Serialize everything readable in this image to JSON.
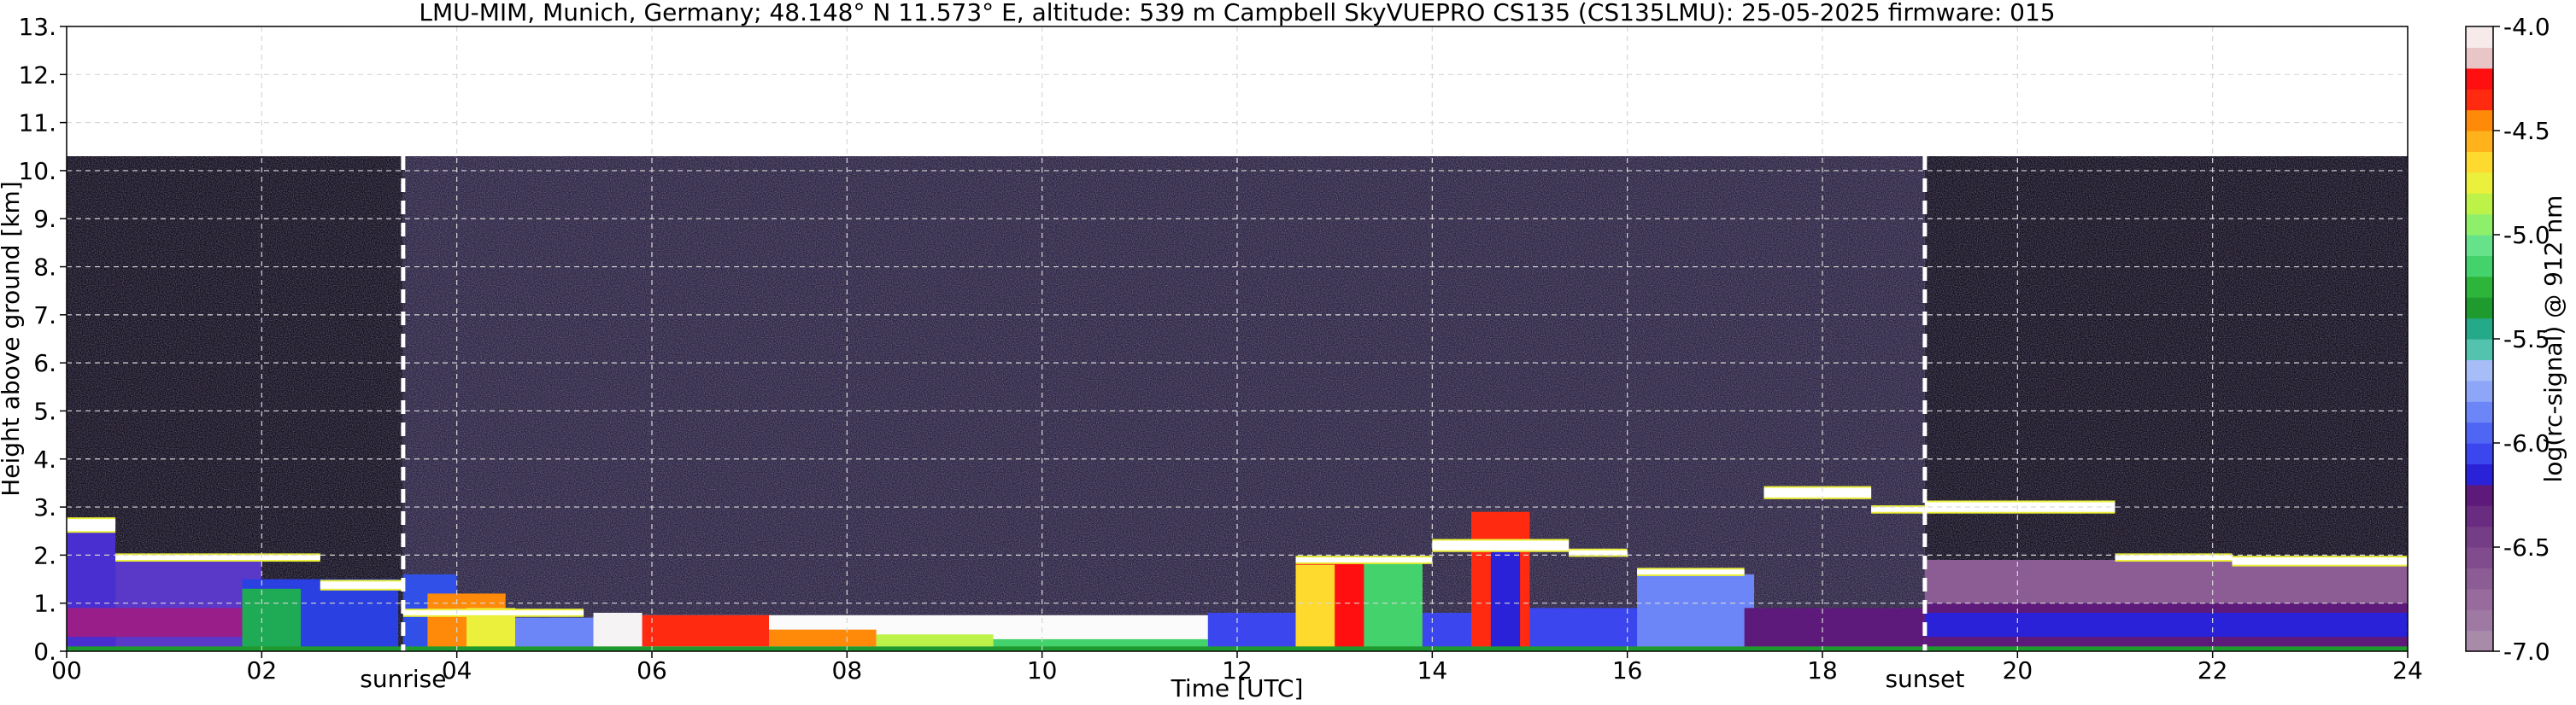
{
  "chart_data": {
    "type": "heatmap",
    "title": "LMU-MIM, Munich, Germany; 48.148° N 11.573° E, altitude: 539 m    Campbell SkyVUEPRO CS135 (CS135LMU): 25-05-2025    firmware: 015",
    "xlabel": "Time [UTC]",
    "ylabel": "Height above ground [km]",
    "xlim": [
      0,
      24
    ],
    "ylim": [
      0,
      13
    ],
    "x_ticks": [
      0,
      2,
      4,
      6,
      8,
      10,
      12,
      14,
      16,
      18,
      20,
      22,
      24
    ],
    "x_tick_labels": [
      "00",
      "02",
      "04",
      "06",
      "08",
      "10",
      "12",
      "14",
      "16",
      "18",
      "20",
      "22",
      "24"
    ],
    "y_ticks": [
      0,
      1,
      2,
      3,
      4,
      5,
      6,
      7,
      8,
      9,
      10,
      11,
      12,
      13
    ],
    "y_tick_labels": [
      "0.",
      "1.",
      "2.",
      "3.",
      "4.",
      "5.",
      "6.",
      "7.",
      "8.",
      "9.",
      "10.",
      "11.",
      "12.",
      "13."
    ],
    "grid": true,
    "data_top_km": 10.3,
    "annotations": [
      {
        "label": "sunrise",
        "x": 3.45
      },
      {
        "label": "sunset",
        "x": 19.05
      }
    ],
    "colorbar": {
      "label": "log(rc-signal) @ 912 nm",
      "range": [
        -7.0,
        -4.0
      ],
      "tick_values": [
        -4.0,
        -4.5,
        -5.0,
        -5.5,
        -6.0,
        -6.5,
        -7.0
      ],
      "tick_labels": [
        "-4.0",
        "-4.5",
        "-5.0",
        "-5.5",
        "-6.0",
        "-6.5",
        "-7.0"
      ],
      "colors_bottom_to_top": [
        "#a78ba9",
        "#9e7aa3",
        "#976b9c",
        "#8c5d95",
        "#804c8e",
        "#753d86",
        "#6a2c80",
        "#5e1a7b",
        "#2a22d8",
        "#3b46ee",
        "#4f66f4",
        "#6c86f7",
        "#8ea6f8",
        "#a6bdf7",
        "#53c3b0",
        "#24aa88",
        "#1f9a2e",
        "#2db43a",
        "#44d26c",
        "#66e38a",
        "#8ef06a",
        "#bdf249",
        "#ebf03d",
        "#ffda2e",
        "#ffb21b",
        "#ff8a0a",
        "#ff2a10",
        "#ff0f0f",
        "#e8c6c8",
        "#f6eaeb"
      ]
    },
    "background_regions": [
      {
        "name": "dark night noise",
        "x": [
          0,
          3.45
        ],
        "y": [
          0,
          10.3
        ],
        "color": "#14101c"
      },
      {
        "name": "day noise",
        "x": [
          3.45,
          19.05
        ],
        "y": [
          0,
          10.3
        ],
        "color": "#2c2540"
      },
      {
        "name": "dark night noise",
        "x": [
          19.05,
          24
        ],
        "y": [
          0,
          10.3
        ],
        "color": "#14101c"
      }
    ],
    "boundary_layer": [
      {
        "x": [
          0,
          0.5
        ],
        "y": [
          0,
          2.6
        ],
        "color": "#4a2fd0"
      },
      {
        "x": [
          0.5,
          2.0
        ],
        "y": [
          0,
          1.9
        ],
        "color": "#5a38c8"
      },
      {
        "x": [
          0,
          2.2
        ],
        "y": [
          0.3,
          0.9
        ],
        "color": "#9a1e8a"
      },
      {
        "x": [
          1.8,
          3.4
        ],
        "y": [
          0,
          1.5
        ],
        "color": "#2a40e0"
      },
      {
        "x": [
          1.8,
          2.4
        ],
        "y": [
          0,
          1.3
        ],
        "color": "#1faa55"
      },
      {
        "x": [
          3.45,
          4.0
        ],
        "y": [
          0,
          1.6
        ],
        "color": "#3050e8"
      },
      {
        "x": [
          3.7,
          4.5
        ],
        "y": [
          0,
          1.2
        ],
        "color": "#ff8a0a"
      },
      {
        "x": [
          4.1,
          4.6
        ],
        "y": [
          0,
          0.9
        ],
        "color": "#ebf03d"
      },
      {
        "x": [
          4.6,
          5.4
        ],
        "y": [
          0,
          0.7
        ],
        "color": "#6c86f7"
      },
      {
        "x": [
          5.4,
          5.9
        ],
        "y": [
          0,
          0.8
        ],
        "color": "#f6f3f5"
      },
      {
        "x": [
          5.9,
          12.6
        ],
        "y": [
          0,
          0.75
        ],
        "color": "#fbfbfb"
      },
      {
        "x": [
          5.9,
          7.2
        ],
        "y": [
          0.1,
          0.75
        ],
        "color": "#ff2a10"
      },
      {
        "x": [
          7.2,
          8.3
        ],
        "y": [
          0.1,
          0.45
        ],
        "color": "#ff8a0a"
      },
      {
        "x": [
          8.3,
          9.5
        ],
        "y": [
          0.1,
          0.35
        ],
        "color": "#bdf249"
      },
      {
        "x": [
          9.5,
          11.7
        ],
        "y": [
          0.05,
          0.25
        ],
        "color": "#44d26c"
      },
      {
        "x": [
          11.7,
          12.6
        ],
        "y": [
          0,
          0.8
        ],
        "color": "#3b46ee"
      },
      {
        "x": [
          12.6,
          13.9
        ],
        "y": [
          0,
          1.9
        ],
        "color": "#ff0f0f"
      },
      {
        "x": [
          12.6,
          13.0
        ],
        "y": [
          0,
          1.8
        ],
        "color": "#ffda2e"
      },
      {
        "x": [
          13.3,
          13.9
        ],
        "y": [
          0,
          1.9
        ],
        "color": "#44d26c"
      },
      {
        "x": [
          13.9,
          14.4
        ],
        "y": [
          0,
          0.8
        ],
        "color": "#3b46ee"
      },
      {
        "x": [
          14.4,
          15.0
        ],
        "y": [
          0,
          2.9
        ],
        "color": "#ff2a10"
      },
      {
        "x": [
          14.6,
          14.9
        ],
        "y": [
          0,
          2.2
        ],
        "color": "#2a22d8"
      },
      {
        "x": [
          15.0,
          17.2
        ],
        "y": [
          0,
          0.9
        ],
        "color": "#3b46ee"
      },
      {
        "x": [
          16.1,
          17.3
        ],
        "y": [
          0,
          1.6
        ],
        "color": "#6c86f7"
      },
      {
        "x": [
          17.2,
          19.05
        ],
        "y": [
          0,
          0.9
        ],
        "color": "#5e1a7b"
      },
      {
        "x": [
          19.05,
          24
        ],
        "y": [
          0,
          1.9
        ],
        "color": "#8c5d95"
      },
      {
        "x": [
          19.05,
          24
        ],
        "y": [
          0,
          1.0
        ],
        "color": "#5e1a7b"
      },
      {
        "x": [
          19.05,
          24
        ],
        "y": [
          0.3,
          0.8
        ],
        "color": "#2a22d8"
      },
      {
        "x": [
          0,
          24
        ],
        "y": [
          0,
          0.1
        ],
        "color": "#1f9a2e"
      }
    ],
    "cloud_base_layers": [
      {
        "x": [
          0,
          0.5
        ],
        "y": [
          2.5,
          2.75
        ]
      },
      {
        "x": [
          0.5,
          2.6
        ],
        "y": [
          1.9,
          2.0
        ]
      },
      {
        "x": [
          2.6,
          3.45
        ],
        "y": [
          1.3,
          1.45
        ]
      },
      {
        "x": [
          3.45,
          5.3
        ],
        "y": [
          0.75,
          0.85
        ]
      },
      {
        "x": [
          12.6,
          14.0
        ],
        "y": [
          1.85,
          1.95
        ]
      },
      {
        "x": [
          14.0,
          15.4
        ],
        "y": [
          2.1,
          2.3
        ]
      },
      {
        "x": [
          15.4,
          16.0
        ],
        "y": [
          2.0,
          2.1
        ]
      },
      {
        "x": [
          16.1,
          17.2
        ],
        "y": [
          1.6,
          1.7
        ]
      },
      {
        "x": [
          17.4,
          18.5
        ],
        "y": [
          3.2,
          3.4
        ]
      },
      {
        "x": [
          18.5,
          19.05
        ],
        "y": [
          2.9,
          3.0
        ]
      },
      {
        "x": [
          19.05,
          21.0
        ],
        "y": [
          2.9,
          3.1
        ]
      },
      {
        "x": [
          21.0,
          22.2
        ],
        "y": [
          1.9,
          2.0
        ]
      },
      {
        "x": [
          22.2,
          24.0
        ],
        "y": [
          1.8,
          1.95
        ]
      }
    ]
  }
}
